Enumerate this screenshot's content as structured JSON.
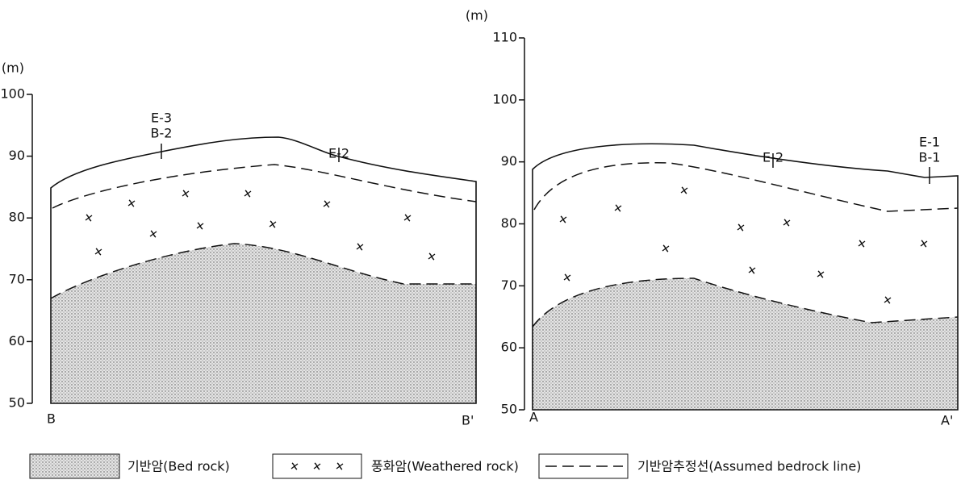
{
  "panels": [
    {
      "unit": "(m)",
      "yticks": [
        100,
        90,
        80,
        70,
        60,
        50
      ],
      "start": "B",
      "end": "B'",
      "boreholes": [
        [
          "E-3",
          "B-2"
        ],
        [
          "E-2"
        ]
      ]
    },
    {
      "unit": "(m)",
      "yticks": [
        110,
        100,
        90,
        80,
        70,
        60,
        50
      ],
      "start": "A",
      "end": "A'",
      "boreholes": [
        [
          "E-2"
        ],
        [
          "E-1",
          "B-1"
        ]
      ]
    }
  ],
  "legend": {
    "bed_rock": "기반암(Bed rock)",
    "weathered_rock": "풍화암(Weathered rock)",
    "assumed_line": "기반암추정선(Assumed bedrock line)"
  }
}
